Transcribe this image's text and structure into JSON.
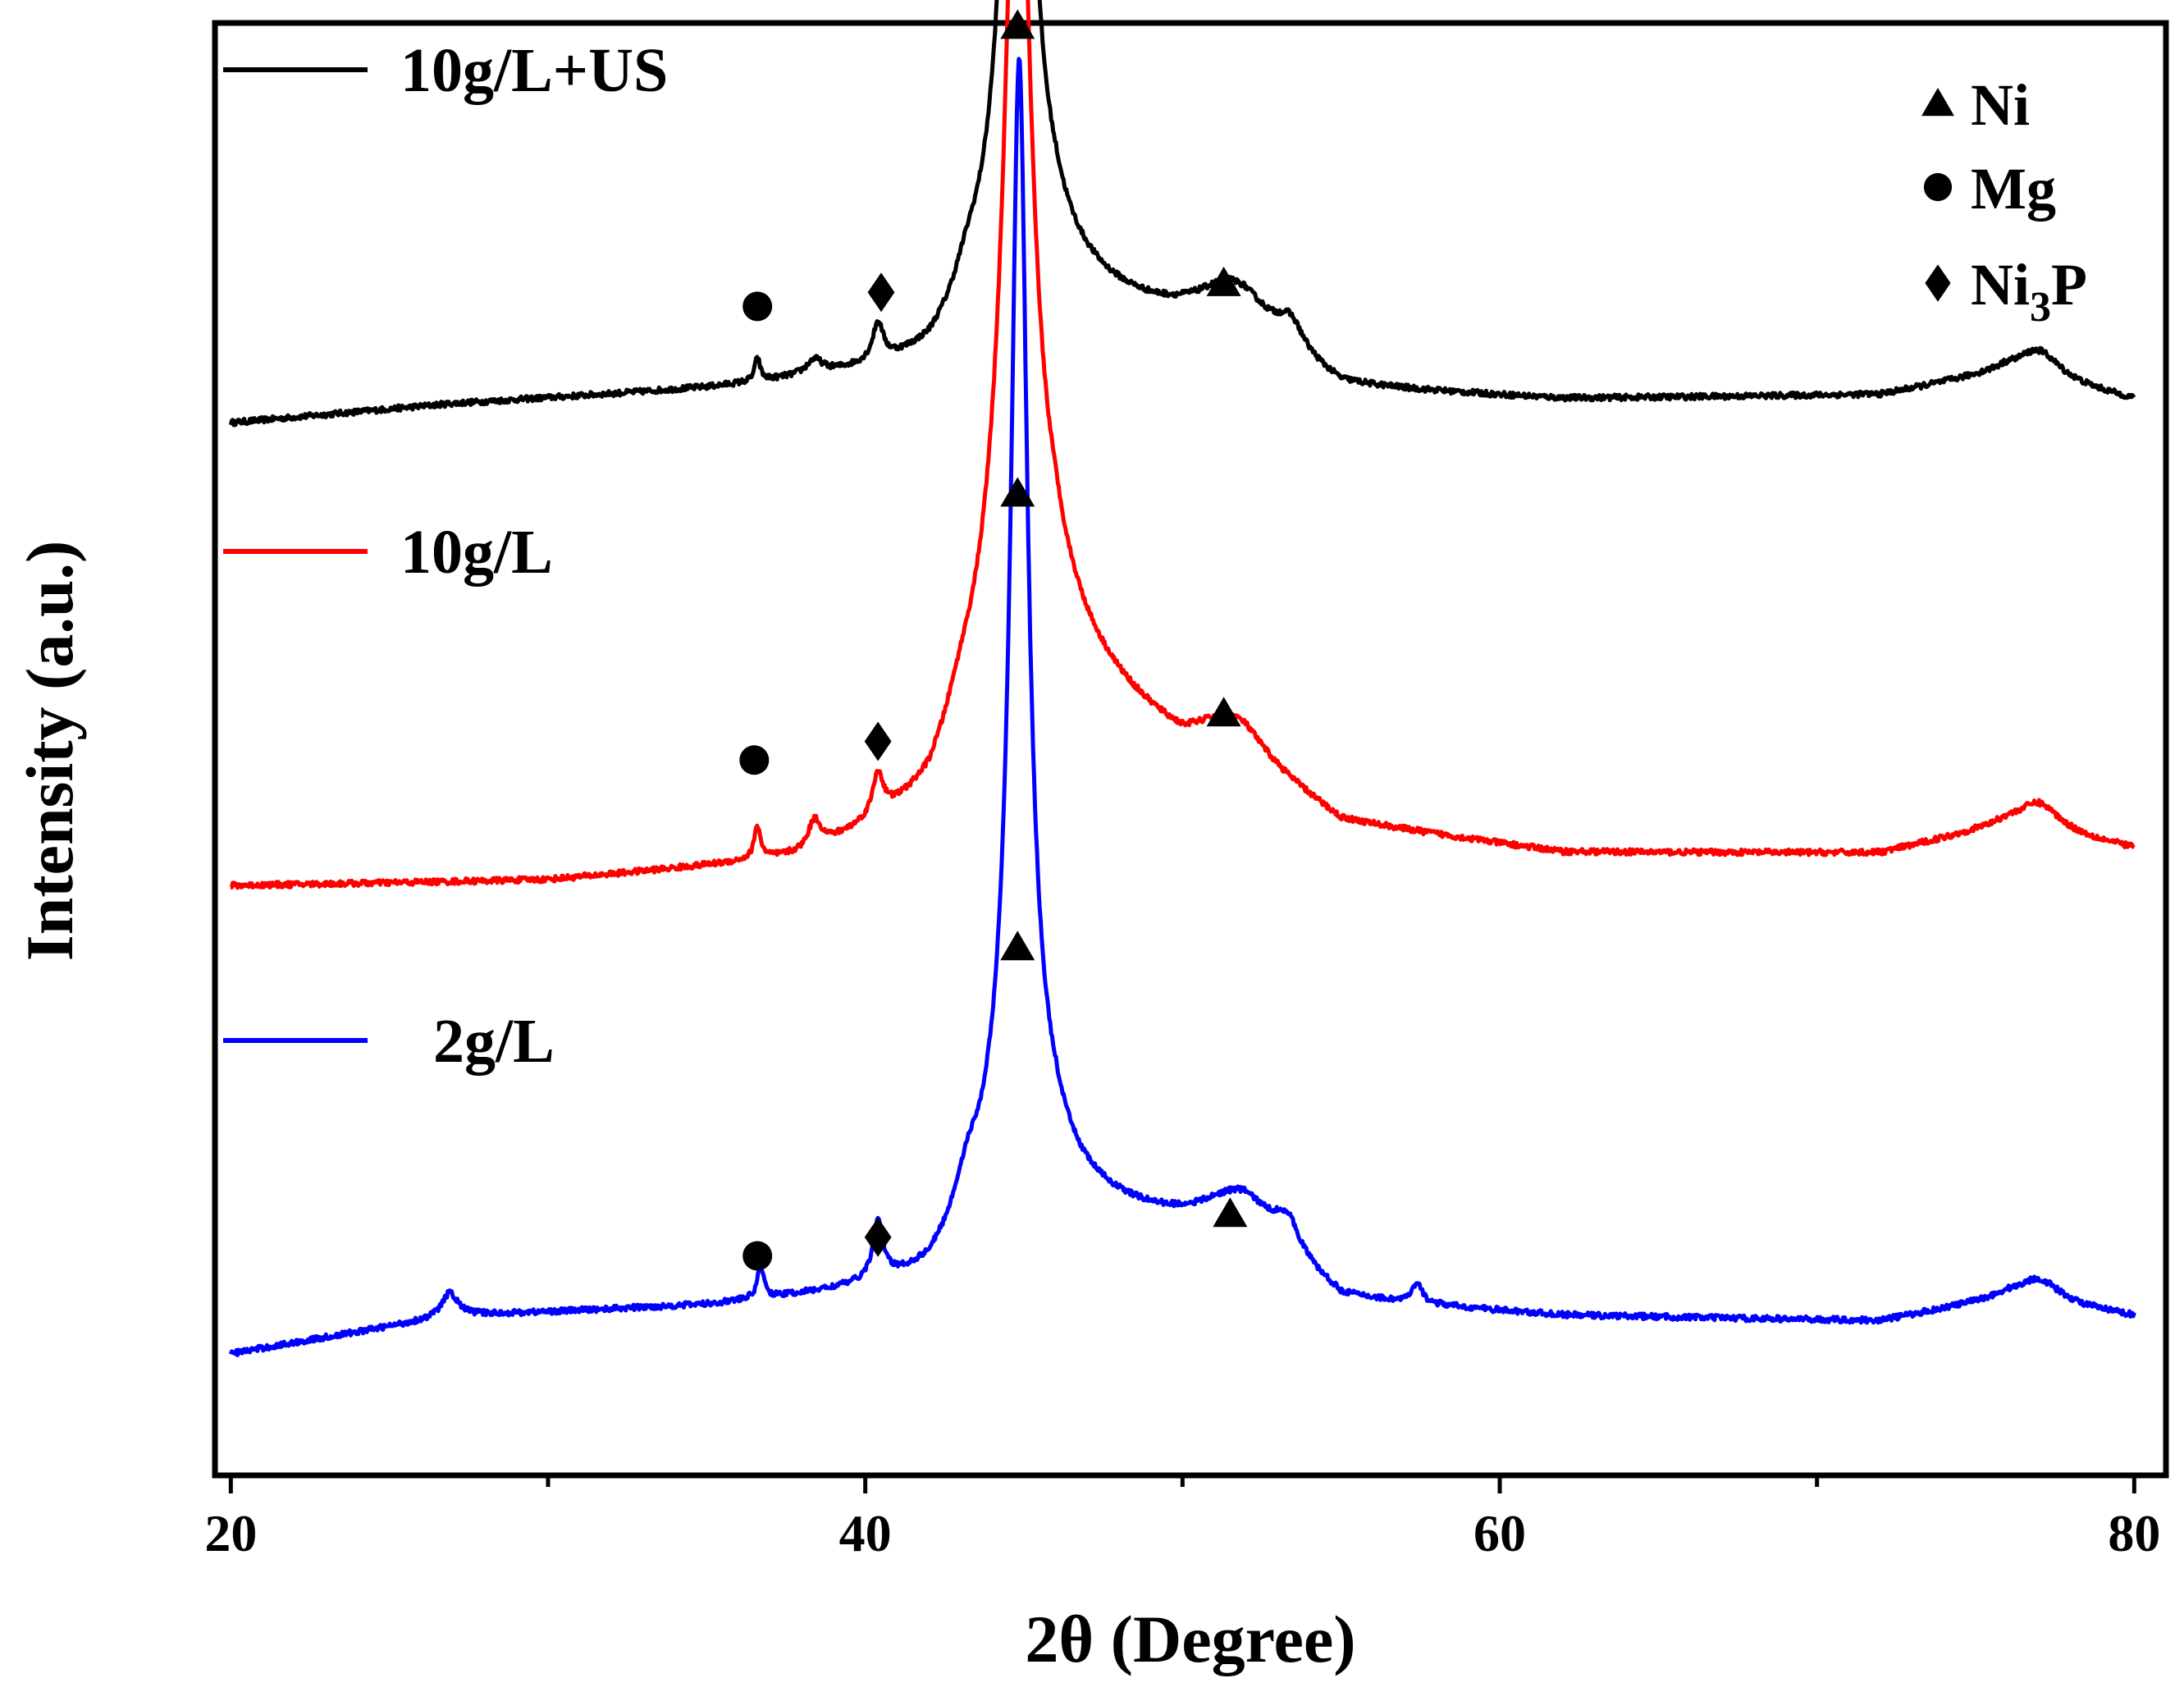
{
  "chart_data": {
    "type": "line",
    "title": "",
    "xlabel": "2θ (Degree)",
    "ylabel": "Intensity (a.u.)",
    "xlim": [
      19.5,
      81
    ],
    "xticks": [
      20,
      40,
      60,
      80
    ],
    "xtick_labels": [
      "20",
      "40",
      "60",
      "80"
    ],
    "grid": false,
    "y_ticks_shown": false,
    "series": [
      {
        "name": "10g/L+US",
        "color": "#000000",
        "offset": 2,
        "baseline": [
          [
            20,
            0.13
          ],
          [
            27,
            0.17
          ],
          [
            35,
            0.2
          ],
          [
            42,
            0.24
          ],
          [
            46,
            0.4
          ],
          [
            52,
            0.3
          ],
          [
            55,
            0.2
          ],
          [
            62,
            0.18
          ],
          [
            72,
            0.19
          ],
          [
            76,
            0.24
          ],
          [
            80,
            0.18
          ]
        ],
        "peaks": [
          {
            "pos": 44.8,
            "height": 2.2,
            "width": 0.3
          },
          {
            "pos": 44.8,
            "height": 0.42,
            "width": 1.1
          },
          {
            "pos": 51.6,
            "height": 0.11,
            "width": 1.4
          },
          {
            "pos": 53.4,
            "height": 0.06,
            "width": 0.5
          },
          {
            "pos": 36.6,
            "height": 0.05,
            "width": 0.1
          },
          {
            "pos": 40.4,
            "height": 0.08,
            "width": 0.2
          },
          {
            "pos": 38.4,
            "height": 0.03,
            "width": 0.3
          },
          {
            "pos": 43.2,
            "height": 0.05,
            "width": 0.5
          },
          {
            "pos": 77.0,
            "height": 0.06,
            "width": 0.8
          }
        ]
      },
      {
        "name": "10g/L",
        "color": "#ff0000",
        "offset": 1,
        "baseline": [
          [
            20,
            0.14
          ],
          [
            30,
            0.15
          ],
          [
            38,
            0.19
          ],
          [
            42,
            0.28
          ],
          [
            46,
            0.6
          ],
          [
            50,
            0.42
          ],
          [
            52,
            0.4
          ],
          [
            55,
            0.27
          ],
          [
            62,
            0.21
          ],
          [
            72,
            0.21
          ],
          [
            76,
            0.27
          ],
          [
            80,
            0.22
          ]
        ],
        "peaks": [
          {
            "pos": 44.8,
            "height": 1.68,
            "width": 0.45
          },
          {
            "pos": 44.8,
            "height": 0.42,
            "width": 1.3
          },
          {
            "pos": 51.5,
            "height": 0.08,
            "width": 1.2
          },
          {
            "pos": 36.6,
            "height": 0.07,
            "width": 0.12
          },
          {
            "pos": 38.4,
            "height": 0.06,
            "width": 0.25
          },
          {
            "pos": 40.4,
            "height": 0.09,
            "width": 0.2
          },
          {
            "pos": 43.0,
            "height": 0.05,
            "width": 0.6
          },
          {
            "pos": 77.0,
            "height": 0.06,
            "width": 0.8
          }
        ]
      },
      {
        "name": "2g/L",
        "color": "#0000ff",
        "offset": 0,
        "baseline": [
          [
            20,
            0.14
          ],
          [
            27,
            0.22
          ],
          [
            35,
            0.24
          ],
          [
            42,
            0.28
          ],
          [
            46,
            0.45
          ],
          [
            52,
            0.38
          ],
          [
            55,
            0.25
          ],
          [
            62,
            0.22
          ],
          [
            72,
            0.21
          ],
          [
            76,
            0.26
          ],
          [
            80,
            0.22
          ]
        ],
        "peaks": [
          {
            "pos": 44.85,
            "height": 2.1,
            "width": 0.3
          },
          {
            "pos": 44.85,
            "height": 0.4,
            "width": 1.05
          },
          {
            "pos": 51.8,
            "height": 0.09,
            "width": 1.4
          },
          {
            "pos": 53.3,
            "height": 0.07,
            "width": 0.5
          },
          {
            "pos": 36.7,
            "height": 0.07,
            "width": 0.12
          },
          {
            "pos": 40.4,
            "height": 0.12,
            "width": 0.2
          },
          {
            "pos": 43.2,
            "height": 0.08,
            "width": 0.5
          },
          {
            "pos": 26.9,
            "height": 0.05,
            "width": 0.3
          },
          {
            "pos": 57.4,
            "height": 0.04,
            "width": 0.2
          },
          {
            "pos": 77.0,
            "height": 0.05,
            "width": 0.8
          }
        ]
      }
    ],
    "peak_markers": [
      {
        "series": "10g/L+US",
        "phase": "Ni",
        "symbol": "triangle",
        "x": 44.8,
        "y": 2.98
      },
      {
        "series": "10g/L+US",
        "phase": "Mg",
        "symbol": "circle",
        "x": 36.6,
        "y": 2.38
      },
      {
        "series": "10g/L+US",
        "phase": "Ni3P",
        "symbol": "diamond",
        "x": 40.5,
        "y": 2.41
      },
      {
        "series": "10g/L+US",
        "phase": "Ni",
        "symbol": "triangle",
        "x": 51.3,
        "y": 2.43
      },
      {
        "series": "10g/L",
        "phase": "Ni",
        "symbol": "triangle",
        "x": 44.8,
        "y": 1.98
      },
      {
        "series": "10g/L",
        "phase": "Mg",
        "symbol": "circle",
        "x": 36.5,
        "y": 1.41
      },
      {
        "series": "10g/L",
        "phase": "Ni3P",
        "symbol": "diamond",
        "x": 40.4,
        "y": 1.45
      },
      {
        "series": "10g/L",
        "phase": "Ni",
        "symbol": "triangle",
        "x": 51.3,
        "y": 1.51
      },
      {
        "series": "2g/L",
        "phase": "Ni",
        "symbol": "triangle",
        "x": 44.8,
        "y": 1.01
      },
      {
        "series": "2g/L",
        "phase": "Mg",
        "symbol": "circle",
        "x": 36.6,
        "y": 0.35
      },
      {
        "series": "2g/L",
        "phase": "Ni3P",
        "symbol": "diamond",
        "x": 40.4,
        "y": 0.39
      },
      {
        "series": "2g/L",
        "phase": "Ni",
        "symbol": "triangle",
        "x": 51.5,
        "y": 0.44
      }
    ],
    "legend": {
      "placement": "top-right",
      "entries": [
        {
          "symbol": "triangle",
          "label": "Ni"
        },
        {
          "symbol": "circle",
          "label": "Mg"
        },
        {
          "symbol": "diamond",
          "label": "Ni",
          "subscript": "3",
          "suffix": "P"
        }
      ]
    }
  }
}
